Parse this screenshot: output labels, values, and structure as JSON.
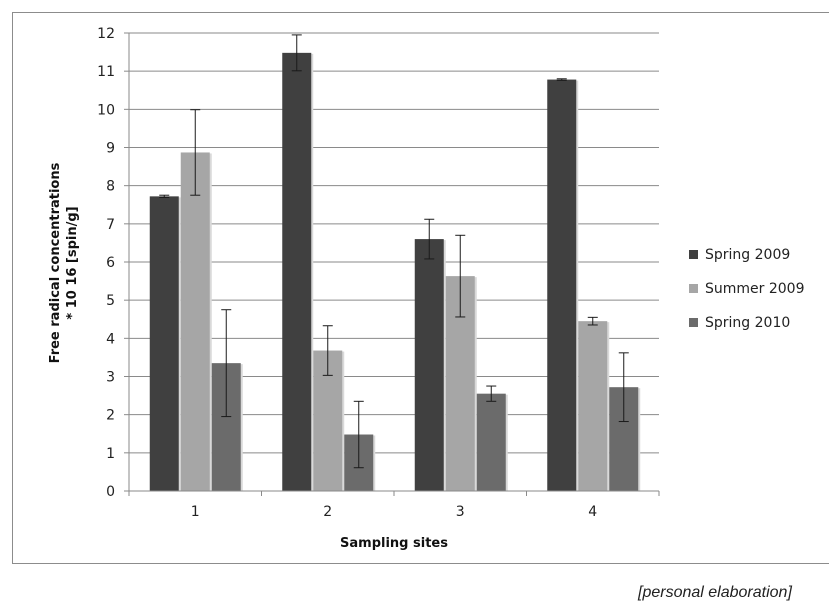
{
  "chart_data": {
    "type": "bar",
    "title": "",
    "xlabel": "Sampling sites",
    "ylabel_line1": "Free radical concentrations",
    "ylabel_line2": "* 10 16 [spin/g]",
    "categories": [
      "1",
      "2",
      "3",
      "4"
    ],
    "ylim": [
      0,
      12
    ],
    "yticks": [
      0,
      1,
      2,
      3,
      4,
      5,
      6,
      7,
      8,
      9,
      10,
      11,
      12
    ],
    "grid": true,
    "legend_position": "right",
    "series": [
      {
        "name": "Spring 2009",
        "color": "#404040",
        "values": [
          7.72,
          11.48,
          6.6,
          10.78
        ],
        "errors": [
          0.03,
          0.47,
          0.52,
          0.02
        ]
      },
      {
        "name": "Summer 2009",
        "color": "#a6a6a6",
        "values": [
          8.87,
          3.68,
          5.63,
          4.45
        ],
        "errors": [
          1.12,
          0.65,
          1.07,
          0.1
        ]
      },
      {
        "name": "Spring 2010",
        "color": "#6b6b6b",
        "values": [
          3.35,
          1.48,
          2.55,
          2.72
        ],
        "errors": [
          1.4,
          0.87,
          0.2,
          0.9
        ]
      }
    ]
  },
  "footer": {
    "source_note": "[personal elaboration]"
  }
}
